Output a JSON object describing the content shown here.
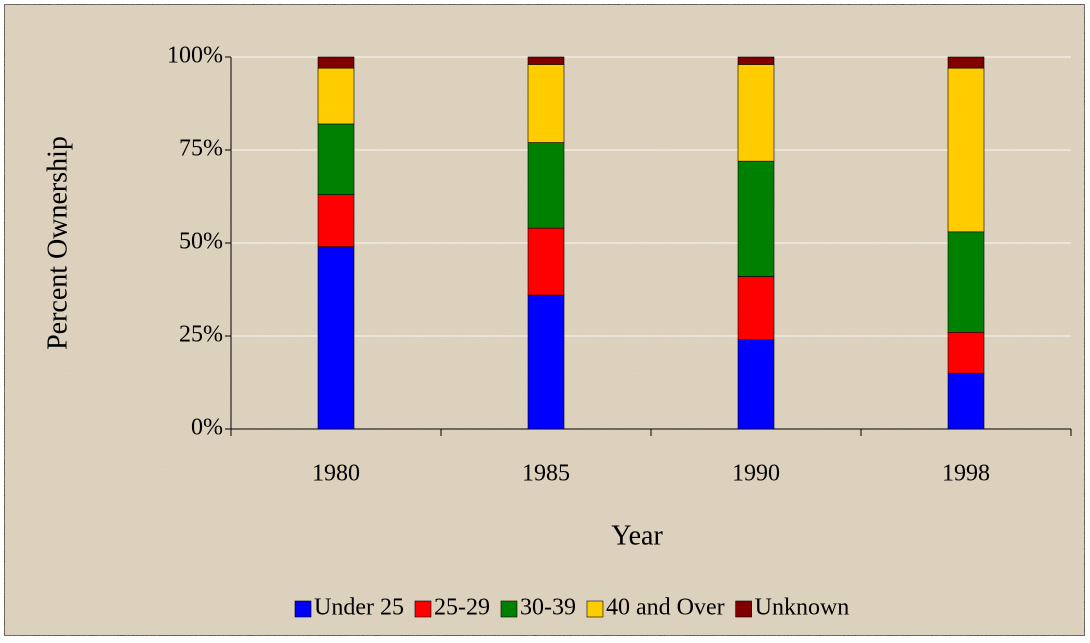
{
  "chart_data": {
    "type": "stacked_bar",
    "y_label": "Percent Ownership",
    "x_label": "Year",
    "categories": [
      "1980",
      "1985",
      "1990",
      "1998"
    ],
    "series": [
      {
        "name": "Under 25",
        "color": "#0000ff",
        "values": [
          49,
          36,
          24,
          15
        ]
      },
      {
        "name": "25-29",
        "color": "#ff0000",
        "values": [
          14,
          18,
          17,
          11
        ]
      },
      {
        "name": "30-39",
        "color": "#008000",
        "values": [
          19,
          23,
          31,
          27
        ]
      },
      {
        "name": "40 and Over",
        "color": "#ffcc00",
        "values": [
          15,
          21,
          26,
          44
        ]
      },
      {
        "name": "Unknown",
        "color": "#800000",
        "values": [
          3,
          2,
          2,
          3
        ]
      }
    ],
    "ylim": [
      0,
      100
    ],
    "yticks": [
      {
        "value": 0,
        "label": "0%"
      },
      {
        "value": 25,
        "label": "25%"
      },
      {
        "value": 50,
        "label": "50%"
      },
      {
        "value": 75,
        "label": "75%"
      },
      {
        "value": 100,
        "label": "100%"
      }
    ],
    "grid": true,
    "legend": "bottom"
  }
}
